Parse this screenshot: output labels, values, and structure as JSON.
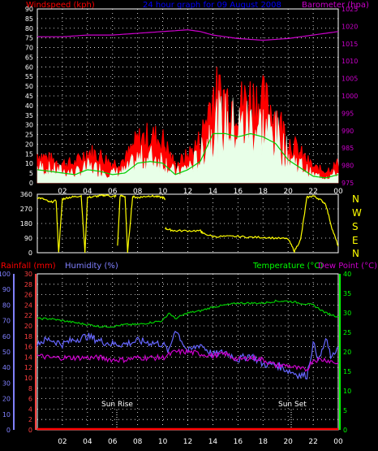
{
  "header": {
    "left_label": "Windspeed (kph)",
    "title": "24 hour graph for  09 August 2008",
    "right_label": "Barometer (hpa)"
  },
  "colors": {
    "background": "#000000",
    "frame": "#ffffff",
    "grid": "#ffffff",
    "wind_gust": "#ff0000",
    "wind_avg_fill": "#e8ffe8",
    "wind_avg_line": "#00cc00",
    "barometer": "#cc00cc",
    "wind_dir": "#ffff00",
    "temperature": "#00cc00",
    "dew_point": "#cc00cc",
    "humidity": "#6666ff",
    "rainfall": "#ff0000",
    "rain_axis": "#ff4040",
    "humidity_axis": "#8080ff",
    "temp_axis": "#00ff00",
    "title_blue": "#0000ff",
    "label_red": "#ff0000",
    "label_magenta": "#cc00cc",
    "label_green": "#00ff00",
    "label_blue": "#8080ff",
    "compass_yellow": "#ffff00",
    "annotation": "#ffffff"
  },
  "time_axis": {
    "ticks": [
      "02",
      "04",
      "06",
      "08",
      "10",
      "12",
      "14",
      "16",
      "18",
      "20",
      "22",
      "00"
    ]
  },
  "labels": {
    "rainfall": "Rainfall (mm)",
    "humidity": "Humidity (%)",
    "temperature": "Temperature (°C)",
    "dew_point": "Dew Point (°C)",
    "sun_rise": "Sun Rise",
    "sun_set": "Sun Set"
  },
  "compass": [
    "N",
    "W",
    "S",
    "E",
    "N"
  ],
  "chart_data": [
    {
      "type": "area",
      "name": "wind",
      "xlim": [
        0,
        24
      ],
      "y_left": {
        "ticks": [
          0,
          5,
          10,
          15,
          20,
          25,
          30,
          35,
          40,
          45,
          50,
          55,
          60,
          65,
          70,
          75,
          80,
          85,
          90
        ],
        "ylim": [
          0,
          90
        ]
      },
      "y_right": {
        "ticks": [
          975,
          980,
          985,
          990,
          995,
          1000,
          1005,
          1010,
          1015,
          1020,
          1025
        ],
        "ylim": [
          975,
          1025
        ]
      },
      "gust_profile": {
        "x": [
          0,
          1,
          2,
          3,
          4,
          5,
          6,
          7,
          8,
          9,
          10,
          11,
          12,
          13,
          14,
          15,
          16,
          17,
          18,
          19,
          20,
          21,
          22,
          23,
          24
        ],
        "y": [
          15,
          12,
          10,
          10,
          16,
          14,
          10,
          12,
          22,
          24,
          22,
          9,
          14,
          22,
          46,
          44,
          40,
          44,
          42,
          36,
          22,
          15,
          8,
          6,
          10
        ]
      },
      "average_profile": {
        "x": [
          0,
          1,
          2,
          3,
          4,
          5,
          6,
          7,
          8,
          9,
          10,
          11,
          12,
          13,
          14,
          15,
          16,
          17,
          18,
          19,
          20,
          21,
          22,
          23,
          24
        ],
        "y": [
          8,
          7,
          6,
          5,
          8,
          7,
          5,
          6,
          12,
          13,
          12,
          5,
          8,
          13,
          30,
          30,
          28,
          30,
          28,
          24,
          14,
          9,
          4,
          3,
          5
        ]
      },
      "barometer": {
        "x": [
          0,
          2,
          4,
          6,
          8,
          10,
          12,
          13,
          14,
          16,
          18,
          20,
          22,
          24
        ],
        "y": [
          1017,
          1017,
          1017.5,
          1017.5,
          1018,
          1018.5,
          1019,
          1018.5,
          1017.5,
          1016.5,
          1016,
          1016.5,
          1017.5,
          1018.5
        ]
      }
    },
    {
      "type": "line",
      "name": "wind_direction",
      "xlim": [
        0,
        24
      ],
      "y": {
        "ticks": [
          0,
          90,
          180,
          270,
          360
        ],
        "ylim": [
          0,
          360
        ]
      },
      "segments": [
        {
          "x": [
            0,
            0.5,
            1,
            1.5,
            1.7,
            2,
            2.5,
            3,
            3.5,
            3.8,
            4,
            4.5,
            5,
            5.5,
            6,
            6.3
          ],
          "y": [
            340,
            330,
            310,
            320,
            0,
            330,
            340,
            345,
            350,
            0,
            340,
            345,
            350,
            355,
            345,
            350
          ]
        },
        {
          "x": [
            6.4,
            6.6,
            7,
            7.2,
            7.6,
            8,
            8.5,
            9,
            9.5,
            10,
            10.2
          ],
          "y": [
            40,
            350,
            345,
            0,
            345,
            340,
            345,
            350,
            345,
            340,
            330
          ]
        },
        {
          "x": [
            10.2,
            10.6,
            11,
            12,
            13,
            13.2,
            14,
            15,
            16,
            17,
            18,
            19,
            20,
            20.5,
            21,
            21.5,
            22,
            22.5,
            23,
            23.5,
            24
          ],
          "y": [
            150,
            140,
            135,
            135,
            135,
            120,
            100,
            100,
            100,
            95,
            95,
            90,
            85,
            10,
            80,
            340,
            350,
            330,
            300,
            150,
            40
          ]
        }
      ]
    },
    {
      "type": "line",
      "name": "temperature_humidity",
      "xlim": [
        0,
        24
      ],
      "y_left": {
        "ticks": [
          0,
          10,
          20,
          30,
          40,
          50,
          60,
          70,
          80,
          90,
          100
        ],
        "ylim": [
          0,
          100
        ]
      },
      "y_rain": {
        "ticks": [
          0,
          2,
          4,
          6,
          8,
          10,
          12,
          14,
          16,
          18,
          20,
          22,
          24,
          26,
          28,
          30
        ],
        "ylim": [
          0,
          30
        ]
      },
      "y_right": {
        "ticks": [
          0,
          5,
          10,
          15,
          20,
          25,
          30,
          35,
          40
        ],
        "ylim": [
          0,
          40
        ]
      },
      "temperature": {
        "x": [
          0,
          1,
          2,
          3,
          4,
          5,
          6,
          7,
          8,
          9,
          10,
          10.5,
          11,
          12,
          13,
          14,
          15,
          16,
          17,
          18,
          19,
          20,
          21,
          22,
          23,
          24
        ],
        "y": [
          28.5,
          28.5,
          28,
          27.5,
          27,
          26.5,
          26.5,
          27,
          27,
          27.5,
          28,
          30,
          28.5,
          30,
          30.5,
          31.5,
          32,
          32.5,
          32.5,
          32.5,
          33,
          33,
          32.5,
          32,
          30,
          29
        ]
      },
      "humidity": {
        "x": [
          0,
          1,
          2,
          3,
          4,
          5,
          6,
          7,
          8,
          9,
          10,
          10.5,
          11,
          12,
          13,
          14,
          15,
          16,
          17,
          18,
          19,
          20,
          21,
          21.5,
          22,
          22.5,
          23,
          23.5,
          24
        ],
        "y": [
          56,
          58,
          55,
          58,
          60,
          57,
          55,
          55,
          57,
          56,
          55,
          50,
          65,
          50,
          55,
          48,
          50,
          45,
          48,
          42,
          42,
          38,
          35,
          35,
          55,
          45,
          58,
          45,
          55
        ]
      },
      "dew_point": {
        "x": [
          0,
          1,
          2,
          3,
          4,
          5,
          6,
          7,
          8,
          9,
          10,
          11,
          12,
          13,
          14,
          15,
          16,
          17,
          18,
          19,
          20,
          21,
          21.5,
          22,
          23,
          24
        ],
        "y": [
          19,
          18.5,
          18.5,
          18.5,
          18.5,
          18.5,
          18,
          18,
          18.5,
          18.5,
          18.5,
          20,
          20,
          19.5,
          19,
          19.5,
          18,
          18.5,
          18,
          16.5,
          16.5,
          15.5,
          15.5,
          18,
          18,
          17
        ]
      },
      "rainfall": {
        "x": [
          0,
          24
        ],
        "y": [
          0,
          0
        ]
      },
      "annotations": [
        {
          "label": "Sun Rise",
          "x": 6.3
        },
        {
          "label": "Sun Set",
          "x": 20.3
        }
      ]
    }
  ]
}
